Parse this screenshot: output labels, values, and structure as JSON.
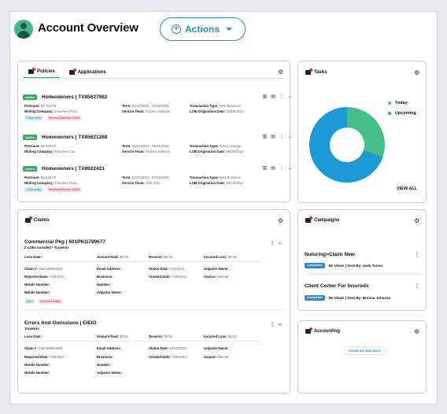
{
  "header": {
    "title": "Account Overview",
    "actions_label": "Actions"
  },
  "policies": {
    "tabs": [
      {
        "label": "Policies"
      },
      {
        "label": "Applications"
      }
    ],
    "items": [
      {
        "status": "Active",
        "name": "Homeowners | TX85627982",
        "premium_label": "Premium:",
        "premium": "$3,752.00",
        "writing_label": "Writing Company:",
        "writing": "Travelers Prop...",
        "term_label": "Term:",
        "term": "02/15/2023 - 02/15/2025",
        "team_label": "Service Team:",
        "team": "Andrea Vallmore",
        "ttype_label": "Transaction Type:",
        "ttype": "New Business",
        "lob_label": "LOB Origination Date:",
        "lob": "02/15/2023",
        "tags": [
          "C(Specialty)",
          "Renewal Effective 2/6/25"
        ]
      },
      {
        "status": "Active",
        "name": "Homeowners | TX85621288",
        "premium_label": "Premium:",
        "premium": "$1,920.00",
        "writing_label": "Writing Company:",
        "writing": "Travelers Cas",
        "term_label": "Term:",
        "term": "05/01/2023 - 05/01/2025",
        "team_label": "Service Team:",
        "team": "Andrea Vallmore",
        "ttype_label": "Transaction Type:",
        "ttype": "Policy Change",
        "lob_label": "LOB Origination Date:",
        "lob": "05/05/2023",
        "tags": []
      },
      {
        "status": "Active",
        "name": "Homeowners | TX8922421",
        "premium_label": "Premium:",
        "premium": "$3,628.00",
        "writing_label": "Writing Company:",
        "writing": "Travelers Prop...",
        "term_label": "Term:",
        "term": "07/23/2023 - 07/23/2025",
        "team_label": "Service Team:",
        "team": "John Doe",
        "ttype_label": "Transaction Type:",
        "ttype": "New Business",
        "lob_label": "LOB Origination Date:",
        "lob": "09/24/2023",
        "tags": [
          "C(Specialty)",
          "Renewal Effective 2/6/25"
        ]
      }
    ]
  },
  "claims": {
    "title": "Claims",
    "items": [
      {
        "name": "Commercial Pkg | 601PKG789677",
        "sub": "2 LOBs Included • Travelers",
        "loss_label": "Loss Date:",
        "loss": "-",
        "amount_label": "Amount Paid:",
        "amount": "$0.00",
        "reserve_label": "Reserve:",
        "reserve": "$0.00",
        "incurred_label": "Incurred Loss:",
        "incurred": "$0.00",
        "claimno_label": "Claim #:",
        "claimno": "Claim98964365",
        "email_label": "Email Address:",
        "email": "-",
        "statusd_label": "Status Date:",
        "statusd": "7/28/2021",
        "adjname_label": "Adjuster Name:",
        "adjname": "-",
        "reported_label": "Reported Date:",
        "reported": "7/28/2021",
        "business_label": "Business:",
        "business": "-",
        "created_label": "Created Date:",
        "created": "7/28/2021",
        "source_label": "Source:",
        "source": "Manual",
        "mobile1_label": "Mobile Number:",
        "mobile1": "-",
        "number_label": "Number:",
        "number": "-",
        "mobile2_label": "Mobile Number:",
        "mobile2": "-",
        "adjnotes_label": "Adjuster Notes:",
        "adjnotes": "-",
        "tags": [
          "Open",
          "General Liability"
        ]
      },
      {
        "name": "Errors And Omissions | EIEIO",
        "sub": "Travelers",
        "loss_label": "Loss Date:",
        "loss": "-",
        "amount_label": "Amount Paid:",
        "amount": "$0.00",
        "reserve_label": "Reserve:",
        "reserve": "$0.00",
        "incurred_label": "Incurred Loss:",
        "incurred": "$0.00",
        "claimno_label": "Claim #:",
        "claimno": "Claim98964365",
        "email_label": "Email Address:",
        "email": "-",
        "statusd_label": "Status Date:",
        "statusd": "10/16/2019",
        "adjname_label": "Adjuster Name:",
        "adjname": "-",
        "reported_label": "Reported Date:",
        "reported": "7/28/2021",
        "business_label": "Business:",
        "business": "-",
        "created_label": "Created Date:",
        "created": "7/28/2021",
        "source_label": "Source:",
        "source": "Manual",
        "mobile1_label": "Mobile Number:",
        "mobile1": "-",
        "number_label": "Number:",
        "number": "-",
        "mobile2_label": "Mobile Number:",
        "mobile2": "-",
        "adjnotes_label": "Adjuster Notes:",
        "adjnotes": "-",
        "tags": []
      }
    ]
  },
  "tasks": {
    "title": "Tasks",
    "view_all": "VIEW ALL",
    "chart_data": {
      "type": "pie",
      "labels": [
        "Today",
        "Upcoming"
      ],
      "values": [
        30,
        70
      ],
      "colors": [
        "#45bf8a",
        "#1d9ad6"
      ]
    }
  },
  "campaigns": {
    "title": "Campaigns",
    "items": [
      {
        "name": "Nuturing>Claim New",
        "status": "Completed",
        "meta": "No Views | Sent By: Jarle Turner"
      },
      {
        "name": "Client Center For Insureds",
        "status": "Completed",
        "meta": "No Views | Sent By: Brenna Johnson"
      }
    ]
  },
  "accounting": {
    "title": "Accounting",
    "button": "SHOW A/R BALANCE"
  },
  "colors": {
    "accent": "#2e8bc9",
    "green": "#41a65e",
    "blue": "#1d9ad6"
  }
}
